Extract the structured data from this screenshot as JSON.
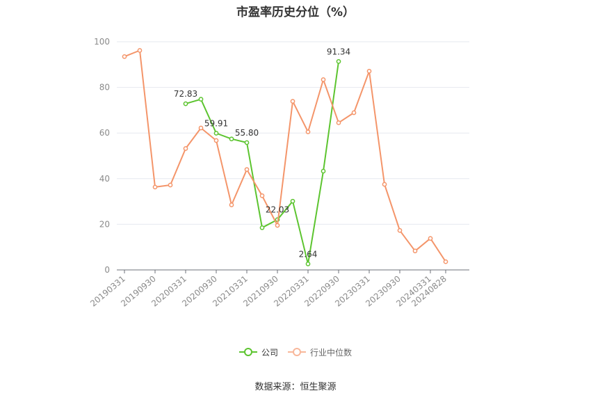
{
  "chart_data": {
    "type": "line",
    "title": "市盈率历史分位（%）",
    "xlabel": "",
    "ylabel": "",
    "ylim": [
      0,
      100
    ],
    "yticks": [
      0,
      20,
      40,
      60,
      80,
      100
    ],
    "grid": true,
    "legend_position": "bottom",
    "x": [
      "20190331",
      "20190630",
      "20190930",
      "20191231",
      "20200331",
      "20200630",
      "20200930",
      "20201231",
      "20210331",
      "20210630",
      "20210930",
      "20211231",
      "20220331",
      "20220630",
      "20220930",
      "20221231",
      "20230331",
      "20230630",
      "20230930",
      "20231231",
      "20240331",
      "20240828"
    ],
    "xtick_labels": [
      "20190331",
      "20190930",
      "20200331",
      "20200930",
      "20210331",
      "20210930",
      "20220331",
      "20220930",
      "20230331",
      "20230930",
      "20240331",
      "20240828"
    ],
    "series": [
      {
        "name": "公司",
        "color": "#5cc42f",
        "values": [
          null,
          null,
          null,
          null,
          72.83,
          74.8,
          59.91,
          57.4,
          55.8,
          18.5,
          22.03,
          30.1,
          2.64,
          43.3,
          91.34,
          null,
          null,
          null,
          null,
          null,
          null,
          null
        ],
        "data_labels": [
          "72.83",
          "59.91",
          "55.80",
          "22.03",
          "2.64",
          "91.34"
        ],
        "label_indices": [
          4,
          6,
          8,
          10,
          12,
          14
        ]
      },
      {
        "name": "行业中位数",
        "color": "#f4956a",
        "values": [
          93.5,
          96.2,
          36.3,
          37.2,
          53.2,
          62.2,
          56.7,
          28.5,
          44.0,
          32.5,
          19.5,
          73.9,
          60.5,
          83.4,
          64.5,
          68.9,
          87.1,
          37.5,
          17.3,
          8.3,
          13.8,
          3.6
        ]
      }
    ]
  },
  "legend": {
    "company_label": "公司",
    "industry_label": "行业中位数"
  },
  "source_text": "数据来源：恒生聚源"
}
